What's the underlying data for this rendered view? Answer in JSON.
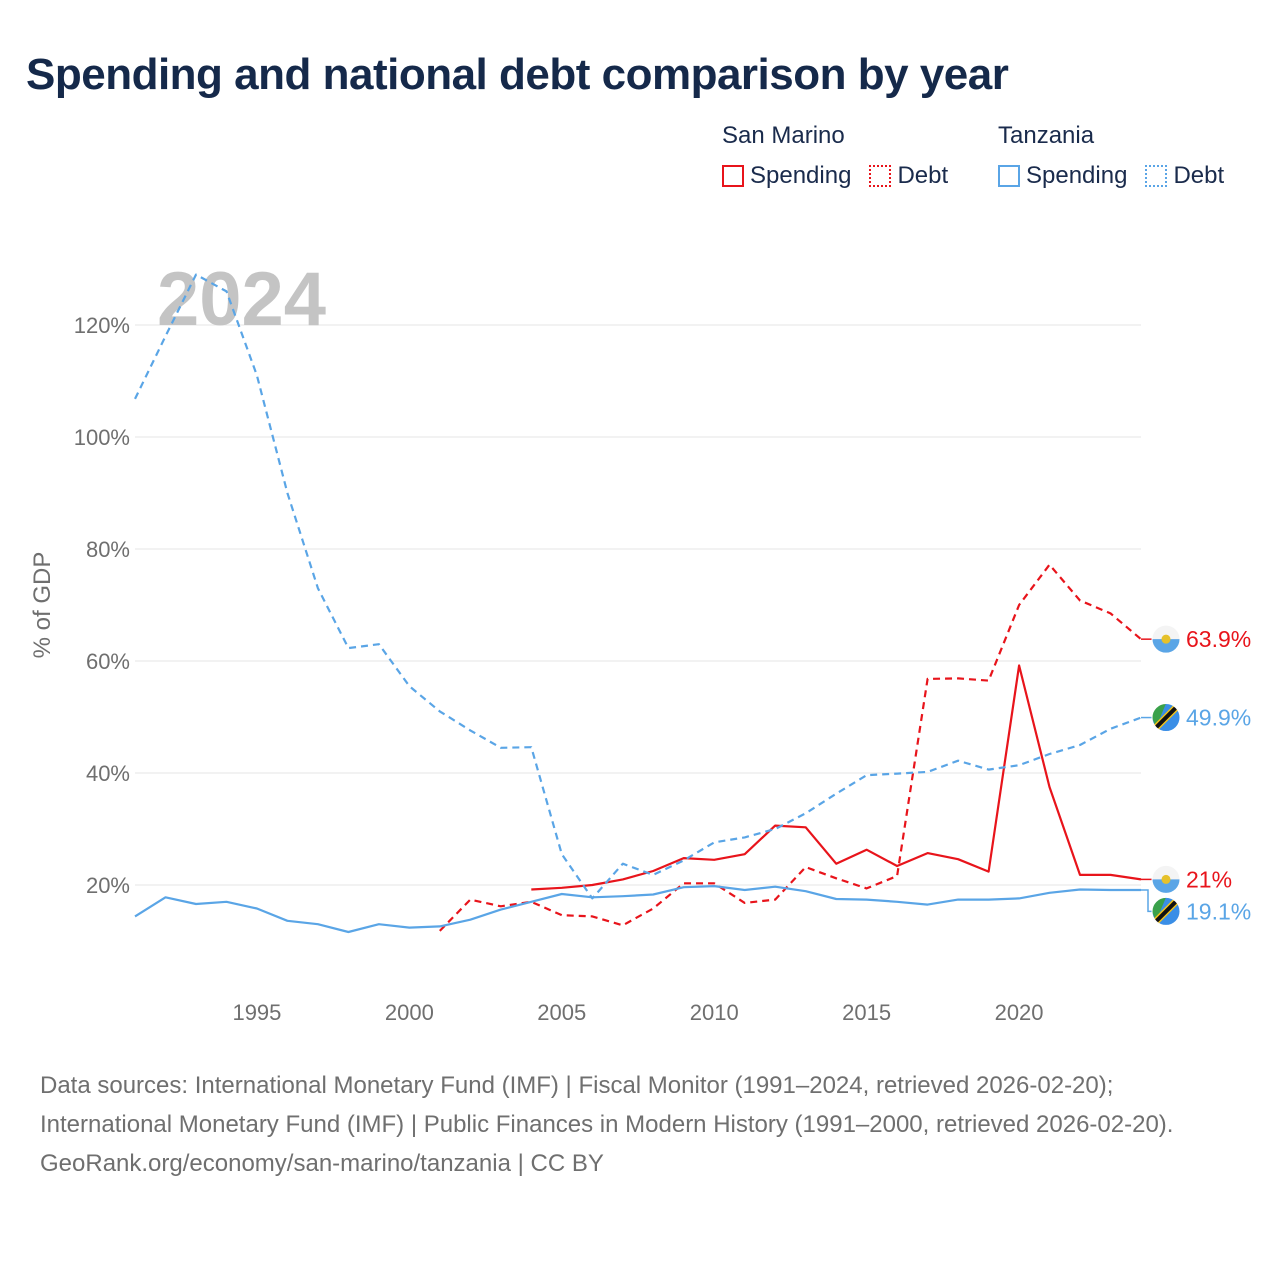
{
  "title": "Spending and national debt comparison by year",
  "legend": {
    "groups": [
      {
        "country": "San Marino",
        "items": [
          {
            "label": "Spending",
            "style": "solid"
          },
          {
            "label": "Debt",
            "style": "dotted"
          }
        ],
        "color": "#e8141b"
      },
      {
        "country": "Tanzania",
        "items": [
          {
            "label": "Spending",
            "style": "solid"
          },
          {
            "label": "Debt",
            "style": "dotted"
          }
        ],
        "color": "#5aa5e6"
      }
    ]
  },
  "year_watermark": "2024",
  "chart_data": {
    "type": "line",
    "title": "Spending and national debt comparison by year",
    "xlabel": "",
    "ylabel": "% of GDP",
    "xlim": [
      1991,
      2024
    ],
    "ylim": [
      8,
      130
    ],
    "x_ticks": [
      1995,
      2000,
      2005,
      2010,
      2015,
      2020
    ],
    "y_ticks": [
      20,
      40,
      60,
      80,
      100,
      120
    ],
    "y_tick_labels": [
      "20%",
      "40%",
      "60%",
      "80%",
      "100%",
      "120%"
    ],
    "series": [
      {
        "name": "San Marino Spending",
        "country": "San Marino",
        "metric": "Spending",
        "color": "#e8141b",
        "dash": false,
        "end_label": "21%",
        "x": [
          2004,
          2005,
          2006,
          2007,
          2008,
          2009,
          2010,
          2011,
          2012,
          2013,
          2014,
          2015,
          2016,
          2017,
          2018,
          2019,
          2020,
          2021,
          2022,
          2023,
          2024
        ],
        "values": [
          19.2,
          19.5,
          20.0,
          21.0,
          22.5,
          24.8,
          24.5,
          25.5,
          30.6,
          30.3,
          23.8,
          26.3,
          23.4,
          25.7,
          24.6,
          22.4,
          59.2,
          37.5,
          21.8,
          21.8,
          21.0
        ]
      },
      {
        "name": "San Marino Debt",
        "country": "San Marino",
        "metric": "Debt",
        "color": "#e8141b",
        "dash": true,
        "end_label": "63.9%",
        "x": [
          2001,
          2002,
          2003,
          2004,
          2005,
          2006,
          2007,
          2008,
          2009,
          2010,
          2011,
          2012,
          2013,
          2014,
          2015,
          2016,
          2017,
          2018,
          2019,
          2020,
          2021,
          2022,
          2023,
          2024
        ],
        "values": [
          11.8,
          17.4,
          16.2,
          17.0,
          14.6,
          14.4,
          12.8,
          15.8,
          20.3,
          20.3,
          16.8,
          17.4,
          23.2,
          21.2,
          19.4,
          21.6,
          56.8,
          56.9,
          56.5,
          70.0,
          77.2,
          70.8,
          68.5,
          63.9
        ]
      },
      {
        "name": "Tanzania Spending",
        "country": "Tanzania",
        "metric": "Spending",
        "color": "#5aa5e6",
        "dash": false,
        "end_label": "19.1%",
        "x": [
          1991,
          1992,
          1993,
          1994,
          1995,
          1996,
          1997,
          1998,
          1999,
          2000,
          2001,
          2002,
          2003,
          2004,
          2005,
          2006,
          2007,
          2008,
          2009,
          2010,
          2011,
          2012,
          2013,
          2014,
          2015,
          2016,
          2017,
          2018,
          2019,
          2020,
          2021,
          2022,
          2023,
          2024
        ],
        "values": [
          14.4,
          17.8,
          16.6,
          17.0,
          15.8,
          13.6,
          13.0,
          11.6,
          13.0,
          12.4,
          12.6,
          13.8,
          15.6,
          17.0,
          18.4,
          17.8,
          18.0,
          18.3,
          19.6,
          19.8,
          19.1,
          19.7,
          18.9,
          17.5,
          17.4,
          17.0,
          16.5,
          17.4,
          17.4,
          17.6,
          18.6,
          19.2,
          19.1,
          19.1
        ]
      },
      {
        "name": "Tanzania Debt",
        "country": "Tanzania",
        "metric": "Debt",
        "color": "#5aa5e6",
        "dash": true,
        "end_label": "49.9%",
        "x": [
          1991,
          1992,
          1993,
          1994,
          1995,
          1996,
          1997,
          1998,
          1999,
          2000,
          2001,
          2002,
          2003,
          2004,
          2005,
          2006,
          2007,
          2008,
          2009,
          2010,
          2011,
          2012,
          2013,
          2014,
          2015,
          2016,
          2017,
          2018,
          2019,
          2020,
          2021,
          2022,
          2023,
          2024
        ],
        "values": [
          106.8,
          118.0,
          129.0,
          126.0,
          111.0,
          90.0,
          73.0,
          62.3,
          63.0,
          55.5,
          51.0,
          47.6,
          44.5,
          44.6,
          25.5,
          17.6,
          23.8,
          21.8,
          24.4,
          27.6,
          28.5,
          30.0,
          32.8,
          36.3,
          39.6,
          39.9,
          40.2,
          42.2,
          40.6,
          41.4,
          43.4,
          45.0,
          47.9,
          49.9
        ]
      }
    ]
  },
  "footer": {
    "sources": "Data sources: International Monetary Fund (IMF) | Fiscal Monitor (1991–2024, retrieved 2026-02-20); International Monetary Fund (IMF) | Public Finances in Modern History (1991–2000, retrieved 2026-02-20).",
    "attribution": "GeoRank.org/economy/san-marino/tanzania | CC BY"
  }
}
